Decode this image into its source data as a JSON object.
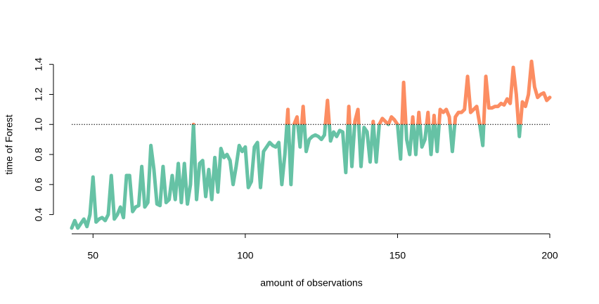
{
  "chart_data": {
    "type": "line",
    "xlabel": "amount of observations",
    "ylabel": "time of Forest",
    "x": [
      43,
      44,
      45,
      46,
      47,
      48,
      49,
      50,
      51,
      52,
      53,
      54,
      55,
      56,
      57,
      58,
      59,
      60,
      61,
      62,
      63,
      64,
      65,
      66,
      67,
      68,
      69,
      70,
      71,
      72,
      73,
      74,
      75,
      76,
      77,
      78,
      79,
      80,
      81,
      82,
      83,
      84,
      85,
      86,
      87,
      88,
      89,
      90,
      91,
      92,
      93,
      94,
      95,
      96,
      97,
      98,
      99,
      100,
      101,
      102,
      103,
      104,
      105,
      106,
      107,
      108,
      109,
      110,
      111,
      112,
      113,
      114,
      115,
      116,
      117,
      118,
      119,
      120,
      121,
      122,
      123,
      124,
      125,
      126,
      127,
      128,
      129,
      130,
      131,
      132,
      133,
      134,
      135,
      136,
      137,
      138,
      139,
      140,
      141,
      142,
      143,
      144,
      145,
      146,
      147,
      148,
      149,
      150,
      151,
      152,
      153,
      154,
      155,
      156,
      157,
      158,
      159,
      160,
      161,
      162,
      163,
      164,
      165,
      166,
      167,
      168,
      169,
      170,
      171,
      172,
      173,
      174,
      175,
      176,
      177,
      178,
      179,
      180,
      181,
      182,
      183,
      184,
      185,
      186,
      187,
      188,
      189,
      190,
      191,
      192,
      193,
      194,
      195,
      196,
      197,
      198,
      199,
      200
    ],
    "values": [
      0.31,
      0.36,
      0.31,
      0.34,
      0.37,
      0.32,
      0.4,
      0.65,
      0.35,
      0.37,
      0.38,
      0.36,
      0.4,
      0.66,
      0.37,
      0.4,
      0.45,
      0.38,
      0.66,
      0.66,
      0.42,
      0.45,
      0.46,
      0.72,
      0.45,
      0.48,
      0.86,
      0.7,
      0.47,
      0.46,
      0.72,
      0.48,
      0.5,
      0.66,
      0.5,
      0.74,
      0.48,
      0.74,
      0.47,
      0.6,
      1.0,
      0.5,
      0.74,
      0.76,
      0.52,
      0.7,
      0.5,
      0.78,
      0.55,
      0.84,
      0.78,
      0.8,
      0.76,
      0.6,
      0.72,
      0.86,
      0.82,
      0.85,
      0.58,
      0.62,
      0.85,
      0.88,
      0.58,
      0.82,
      0.85,
      0.88,
      0.86,
      0.85,
      0.88,
      0.6,
      0.8,
      1.1,
      0.6,
      1.0,
      1.05,
      0.85,
      1.12,
      0.82,
      0.9,
      0.92,
      0.93,
      0.92,
      0.9,
      0.93,
      1.16,
      0.89,
      0.95,
      0.92,
      0.96,
      0.95,
      0.68,
      1.12,
      0.72,
      1.02,
      1.1,
      0.72,
      0.98,
      0.95,
      0.75,
      1.02,
      0.75,
      1.0,
      1.04,
      1.02,
      1.0,
      1.05,
      1.03,
      1.0,
      0.77,
      1.28,
      0.9,
      0.8,
      1.05,
      0.8,
      1.08,
      0.85,
      0.9,
      1.08,
      0.8,
      1.06,
      0.82,
      1.1,
      1.08,
      1.1,
      1.05,
      0.82,
      1.05,
      1.08,
      1.08,
      1.1,
      1.32,
      1.08,
      1.1,
      1.12,
      1.0,
      0.86,
      1.32,
      1.11,
      1.11,
      1.12,
      1.12,
      1.14,
      1.13,
      1.17,
      1.14,
      1.38,
      1.2,
      0.92,
      1.15,
      1.12,
      1.2,
      1.42,
      1.25,
      1.18,
      1.2,
      1.21,
      1.16,
      1.18
    ],
    "threshold": 1,
    "color_below": "#66c2a5",
    "color_above": "#fc8d62",
    "xlim": [
      37,
      206
    ],
    "ylim": [
      0.3,
      1.45
    ],
    "xticks": [
      50,
      100,
      150,
      200
    ],
    "yticks": [
      0.4,
      0.6,
      0.8,
      {
        "value": 1,
        "label": "1.0"
      },
      1.2,
      1.4
    ]
  }
}
